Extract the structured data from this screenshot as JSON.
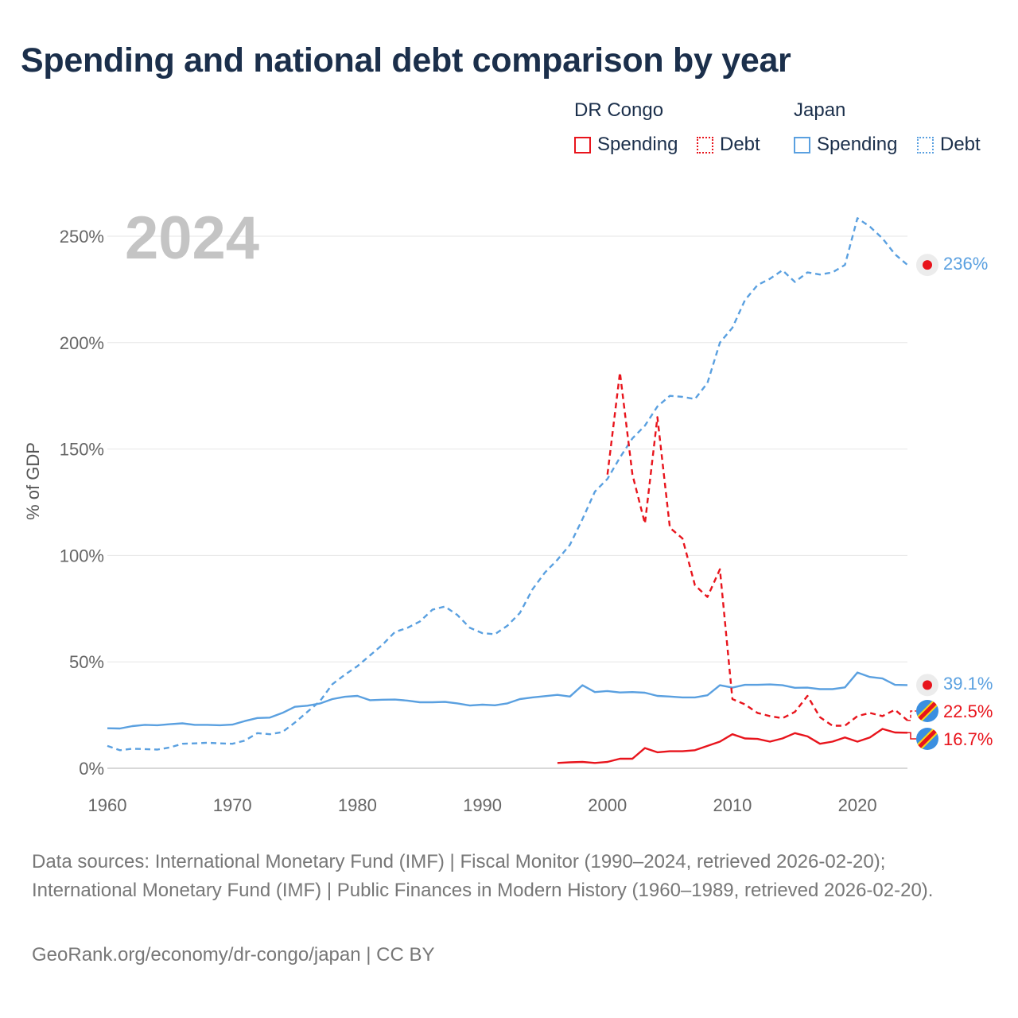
{
  "title": "Spending and national debt comparison by year",
  "legend": {
    "groups": [
      {
        "name": "DR Congo",
        "items": [
          {
            "label": "Spending",
            "style": "solid",
            "color": "#e8141c"
          },
          {
            "label": "Debt",
            "style": "dotted",
            "color": "#e8141c"
          }
        ]
      },
      {
        "name": "Japan",
        "items": [
          {
            "label": "Spending",
            "style": "solid",
            "color": "#5aa0e0"
          },
          {
            "label": "Debt",
            "style": "dotted",
            "color": "#5aa0e0"
          }
        ]
      }
    ]
  },
  "footer": {
    "sources": "Data sources: International Monetary Fund (IMF) | Fiscal Monitor (1990–2024, retrieved 2026-02-20); International Monetary Fund (IMF) | Public Finances in Modern History (1960–1989, retrieved 2026-02-20).",
    "credit": "GeoRank.org/economy/dr-congo/japan | CC BY"
  },
  "chart_data": {
    "type": "line",
    "year_label": "2024",
    "ylabel": "% of GDP",
    "xlim": [
      1960,
      2024
    ],
    "ylim": [
      0,
      260
    ],
    "x_ticks": [
      1960,
      1970,
      1980,
      1990,
      2000,
      2010,
      2020
    ],
    "x_tick_labels": [
      "1960",
      "1970",
      "1980",
      "1990",
      "2000",
      "2010",
      "2020"
    ],
    "y_ticks": [
      0,
      50,
      100,
      150,
      200,
      250
    ],
    "y_tick_labels": [
      "0%",
      "50%",
      "100%",
      "150%",
      "200%",
      "250%"
    ],
    "series": [
      {
        "name": "Japan Debt",
        "country": "Japan",
        "metric": "Debt",
        "color": "#5aa0e0",
        "dash": "dashed",
        "x": [
          1960,
          1961,
          1962,
          1963,
          1964,
          1965,
          1966,
          1967,
          1968,
          1969,
          1970,
          1971,
          1972,
          1973,
          1974,
          1975,
          1976,
          1977,
          1978,
          1979,
          1980,
          1981,
          1982,
          1983,
          1984,
          1985,
          1986,
          1987,
          1988,
          1989,
          1990,
          1991,
          1992,
          1993,
          1994,
          1995,
          1996,
          1997,
          1998,
          1999,
          2000,
          2001,
          2002,
          2003,
          2004,
          2005,
          2006,
          2007,
          2008,
          2009,
          2010,
          2011,
          2012,
          2013,
          2014,
          2015,
          2016,
          2017,
          2018,
          2019,
          2020,
          2021,
          2022,
          2023,
          2024
        ],
        "values": [
          10.5,
          8.5,
          9.2,
          9,
          8.8,
          9.8,
          11.5,
          11.7,
          12,
          11.7,
          11.5,
          13,
          16.5,
          16,
          17,
          21.5,
          26.5,
          31.5,
          39.5,
          44,
          48,
          53,
          58,
          64,
          66,
          69,
          74.5,
          76,
          72,
          66,
          63.5,
          63,
          67,
          73,
          84,
          92,
          98,
          105,
          117,
          130,
          136,
          146,
          155,
          161,
          170,
          175,
          174.5,
          173.5,
          181,
          200,
          207,
          220,
          227,
          230,
          234,
          228.5,
          233,
          232,
          233,
          236.5,
          258.5,
          254.5,
          249,
          241.5,
          236.5
        ],
        "end_label": "236%"
      },
      {
        "name": "Japan Spending",
        "country": "Japan",
        "metric": "Spending",
        "color": "#5aa0e0",
        "dash": "solid",
        "x": [
          1960,
          1961,
          1962,
          1963,
          1964,
          1965,
          1966,
          1967,
          1968,
          1969,
          1970,
          1971,
          1972,
          1973,
          1974,
          1975,
          1976,
          1977,
          1978,
          1979,
          1980,
          1981,
          1982,
          1983,
          1984,
          1985,
          1986,
          1987,
          1988,
          1989,
          1990,
          1991,
          1992,
          1993,
          1994,
          1995,
          1996,
          1997,
          1998,
          1999,
          2000,
          2001,
          2002,
          2003,
          2004,
          2005,
          2006,
          2007,
          2008,
          2009,
          2010,
          2011,
          2012,
          2013,
          2014,
          2015,
          2016,
          2017,
          2018,
          2019,
          2020,
          2021,
          2022,
          2023,
          2024
        ],
        "values": [
          18.8,
          18.7,
          19.8,
          20.4,
          20.2,
          20.7,
          21.1,
          20.4,
          20.4,
          20.2,
          20.5,
          22.2,
          23.6,
          23.8,
          26,
          28.9,
          29.4,
          30.4,
          32.5,
          33.6,
          34,
          32,
          32.2,
          32.3,
          31.8,
          31,
          31,
          31.2,
          30.5,
          29.5,
          29.9,
          29.6,
          30.5,
          32.5,
          33.3,
          33.9,
          34.5,
          33.7,
          39,
          35.8,
          36.3,
          35.6,
          35.8,
          35.5,
          34,
          33.7,
          33.3,
          33.3,
          34.3,
          39,
          37.9,
          39.2,
          39.2,
          39.4,
          39,
          37.8,
          37.9,
          37.2,
          37.2,
          38,
          45,
          42.9,
          42.2,
          39.2,
          39.1
        ],
        "end_label": "39.1%"
      },
      {
        "name": "DR Congo Debt",
        "country": "DR Congo",
        "metric": "Debt",
        "color": "#e8141c",
        "dash": "dashed",
        "x": [
          2000,
          2001,
          2002,
          2003,
          2004,
          2005,
          2006,
          2007,
          2008,
          2009,
          2010,
          2011,
          2012,
          2013,
          2014,
          2015,
          2016,
          2017,
          2018,
          2019,
          2020,
          2021,
          2022,
          2023,
          2024
        ],
        "values": [
          138,
          186,
          138,
          115,
          165,
          113,
          108,
          86,
          80.5,
          93.5,
          32.5,
          30,
          26,
          24.5,
          23.5,
          26.5,
          34,
          24,
          20,
          20,
          24.5,
          26,
          24.5,
          27.5,
          22.5
        ],
        "end_label": "22.5%"
      },
      {
        "name": "DR Congo Spending",
        "country": "DR Congo",
        "metric": "Spending",
        "color": "#e8141c",
        "dash": "solid",
        "x": [
          1996,
          1997,
          1998,
          1999,
          2000,
          2001,
          2002,
          2003,
          2004,
          2005,
          2006,
          2007,
          2008,
          2009,
          2010,
          2011,
          2012,
          2013,
          2014,
          2015,
          2016,
          2017,
          2018,
          2019,
          2020,
          2021,
          2022,
          2023,
          2024
        ],
        "values": [
          2.5,
          2.8,
          3,
          2.5,
          3,
          4.5,
          4.5,
          9.5,
          7.5,
          8,
          8,
          8.5,
          10.5,
          12.5,
          16,
          14,
          13.8,
          12.5,
          14,
          16.5,
          15,
          11.5,
          12.5,
          14.5,
          12.5,
          14.5,
          18.5,
          16.8,
          16.7
        ],
        "end_label": "16.7%"
      }
    ]
  }
}
